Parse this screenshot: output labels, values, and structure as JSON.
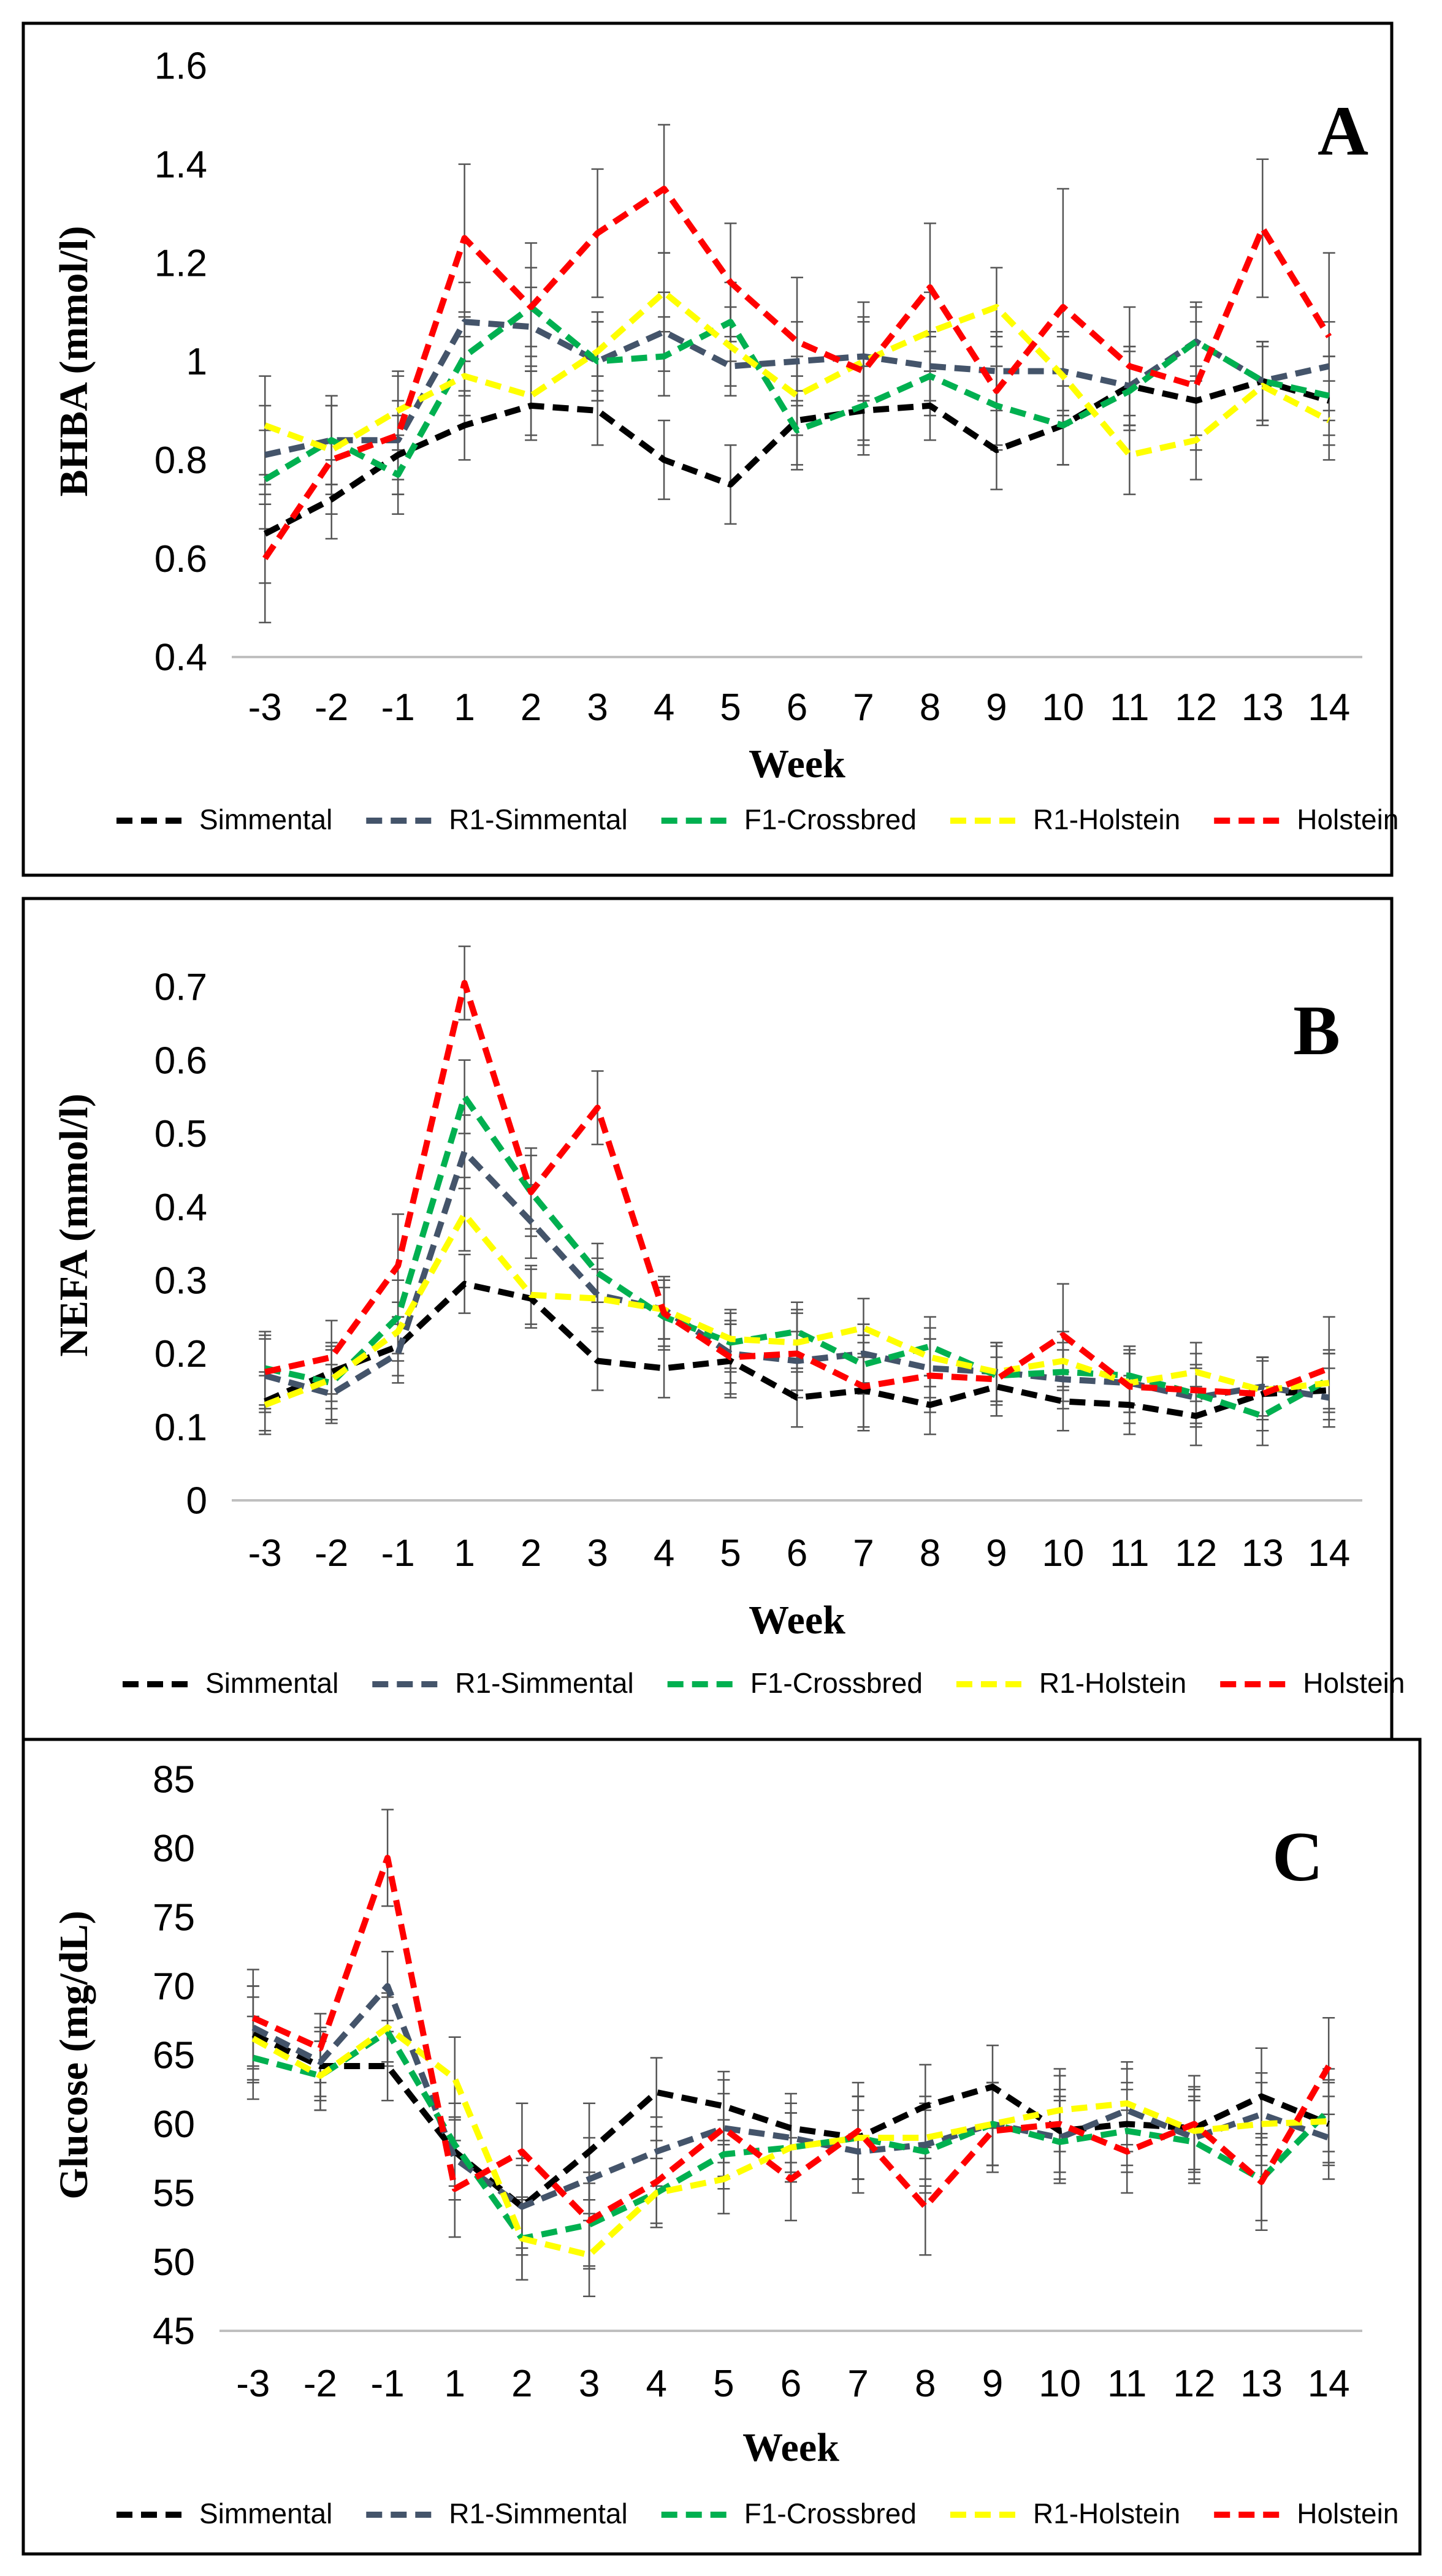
{
  "colors": {
    "Simmental": "#000000",
    "R1-Simmental": "#44546a",
    "F1-Crossbred": "#00b050",
    "R1-Holstein": "#ffff00",
    "Holstein": "#ff0000"
  },
  "chart_data": [
    {
      "type": "line",
      "panel_label": "A",
      "xlabel": "Week",
      "ylabel": "BHBA (mmol/l)",
      "ylim": [
        0.4,
        1.6
      ],
      "yticks": [
        "0.4",
        "0.6",
        "0.8",
        "1",
        "1.2",
        "1.4",
        "1.6"
      ],
      "categories": [
        "-3",
        "-2",
        "-1",
        "1",
        "2",
        "3",
        "4",
        "5",
        "6",
        "7",
        "8",
        "9",
        "10",
        "11",
        "12",
        "13",
        "14"
      ],
      "legend": [
        "Simmental",
        "R1-Simmental",
        "F1-Crossbred",
        "R1-Holstein",
        "Holstein"
      ],
      "series": [
        {
          "name": "Simmental",
          "values": [
            0.65,
            0.72,
            0.81,
            0.87,
            0.91,
            0.9,
            0.8,
            0.75,
            0.88,
            0.9,
            0.91,
            0.82,
            0.87,
            0.95,
            0.92,
            0.96,
            0.92
          ],
          "error": [
            0.1,
            0.08,
            0.08,
            0.07,
            0.07,
            0.07,
            0.08,
            0.08,
            0.09,
            0.09,
            0.07,
            0.08,
            0.08,
            0.08,
            0.07,
            0.08,
            0.09
          ]
        },
        {
          "name": "R1-Simmental",
          "values": [
            0.81,
            0.84,
            0.84,
            1.08,
            1.07,
            1.0,
            1.06,
            0.99,
            1.0,
            1.01,
            0.99,
            0.98,
            0.98,
            0.95,
            1.04,
            0.96,
            0.99
          ],
          "error": [
            0.1,
            0.09,
            0.08,
            0.08,
            0.08,
            0.08,
            0.08,
            0.06,
            0.08,
            0.08,
            0.07,
            0.07,
            0.08,
            0.08,
            0.07,
            0.08,
            0.09
          ]
        },
        {
          "name": "F1-Crossbred",
          "values": [
            0.76,
            0.84,
            0.77,
            1.01,
            1.11,
            1.0,
            1.01,
            1.08,
            0.86,
            0.91,
            0.97,
            0.91,
            0.87,
            0.94,
            1.04,
            0.96,
            0.93
          ],
          "error": [
            0.1,
            0.09,
            0.08,
            0.08,
            0.08,
            0.08,
            0.08,
            0.08,
            0.08,
            0.08,
            0.08,
            0.08,
            0.08,
            0.08,
            0.08,
            0.08,
            0.08
          ]
        },
        {
          "name": "R1-Holstein",
          "values": [
            0.87,
            0.82,
            0.9,
            0.97,
            0.93,
            1.02,
            1.14,
            1.03,
            0.93,
            1.0,
            1.06,
            1.11,
            0.97,
            0.81,
            0.84,
            0.95,
            0.88
          ],
          "error": [
            0.1,
            0.09,
            0.08,
            0.08,
            0.08,
            0.08,
            0.08,
            0.08,
            0.08,
            0.08,
            0.08,
            0.08,
            0.08,
            0.08,
            0.08,
            0.08,
            0.08
          ]
        },
        {
          "name": "Holstein",
          "values": [
            0.6,
            0.8,
            0.85,
            1.25,
            1.11,
            1.26,
            1.35,
            1.16,
            1.04,
            0.98,
            1.15,
            0.94,
            1.11,
            0.99,
            0.95,
            1.27,
            1.05
          ],
          "error": [
            0.13,
            0.11,
            0.12,
            0.15,
            0.13,
            0.13,
            0.13,
            0.12,
            0.13,
            0.14,
            0.13,
            0.12,
            0.24,
            0.12,
            0.13,
            0.14,
            0.17
          ]
        }
      ]
    },
    {
      "type": "line",
      "panel_label": "B",
      "xlabel": "Week",
      "ylabel": "NEFA (mmol/l)",
      "ylim": [
        0,
        0.75
      ],
      "yticks": [
        "0",
        "0.1",
        "0.2",
        "0.3",
        "0.4",
        "0.5",
        "0.6",
        "0.7"
      ],
      "categories": [
        "-3",
        "-2",
        "-1",
        "1",
        "2",
        "3",
        "4",
        "5",
        "6",
        "7",
        "8",
        "9",
        "10",
        "11",
        "12",
        "13",
        "14"
      ],
      "legend": [
        "Simmental",
        "R1-Simmental",
        "F1-Crossbred",
        "R1-Holstein",
        "Holstein"
      ],
      "series": [
        {
          "name": "Simmental",
          "values": [
            0.135,
            0.175,
            0.21,
            0.295,
            0.275,
            0.19,
            0.18,
            0.19,
            0.14,
            0.15,
            0.13,
            0.155,
            0.135,
            0.13,
            0.115,
            0.145,
            0.15
          ],
          "error": [
            0.04,
            0.04,
            0.04,
            0.04,
            0.04,
            0.04,
            0.04,
            0.05,
            0.04,
            0.05,
            0.04,
            0.04,
            0.04,
            0.04,
            0.04,
            0.05,
            0.05
          ]
        },
        {
          "name": "R1-Simmental",
          "values": [
            0.17,
            0.145,
            0.2,
            0.475,
            0.38,
            0.28,
            0.26,
            0.2,
            0.19,
            0.2,
            0.18,
            0.175,
            0.165,
            0.16,
            0.14,
            0.155,
            0.14
          ],
          "error": [
            0.05,
            0.04,
            0.04,
            0.05,
            0.05,
            0.05,
            0.04,
            0.04,
            0.04,
            0.04,
            0.04,
            0.04,
            0.04,
            0.04,
            0.04,
            0.04,
            0.04
          ]
        },
        {
          "name": "F1-Crossbred",
          "values": [
            0.18,
            0.16,
            0.25,
            0.55,
            0.42,
            0.31,
            0.25,
            0.215,
            0.23,
            0.185,
            0.21,
            0.17,
            0.175,
            0.17,
            0.145,
            0.115,
            0.165
          ],
          "error": [
            0.05,
            0.05,
            0.05,
            0.05,
            0.05,
            0.04,
            0.04,
            0.04,
            0.04,
            0.04,
            0.04,
            0.04,
            0.04,
            0.04,
            0.04,
            0.04,
            0.04
          ]
        },
        {
          "name": "R1-Holstein",
          "values": [
            0.13,
            0.165,
            0.23,
            0.39,
            0.28,
            0.275,
            0.26,
            0.22,
            0.215,
            0.235,
            0.195,
            0.175,
            0.19,
            0.16,
            0.175,
            0.15,
            0.16
          ],
          "error": [
            0.04,
            0.04,
            0.04,
            0.05,
            0.04,
            0.04,
            0.04,
            0.04,
            0.04,
            0.04,
            0.04,
            0.04,
            0.04,
            0.04,
            0.04,
            0.04,
            0.04
          ]
        },
        {
          "name": "Holstein",
          "values": [
            0.175,
            0.195,
            0.32,
            0.705,
            0.42,
            0.535,
            0.255,
            0.195,
            0.2,
            0.155,
            0.17,
            0.165,
            0.225,
            0.155,
            0.15,
            0.145,
            0.18
          ],
          "error": [
            0.05,
            0.05,
            0.07,
            0.05,
            0.06,
            0.05,
            0.05,
            0.05,
            0.06,
            0.06,
            0.05,
            0.05,
            0.07,
            0.05,
            0.05,
            0.05,
            0.07
          ]
        }
      ]
    },
    {
      "type": "line",
      "panel_label": "C",
      "xlabel": "Week",
      "ylabel": "Glucose (mg/dL)",
      "ylim": [
        45,
        85
      ],
      "yticks": [
        "45",
        "50",
        "55",
        "60",
        "65",
        "70",
        "75",
        "80",
        "85"
      ],
      "categories": [
        "-3",
        "-2",
        "-1",
        "1",
        "2",
        "3",
        "4",
        "5",
        "6",
        "7",
        "8",
        "9",
        "10",
        "11",
        "12",
        "13",
        "14"
      ],
      "legend": [
        "Simmental",
        "R1-Simmental",
        "F1-Crossbred",
        "R1-Holstein",
        "Holstein"
      ],
      "series": [
        {
          "name": "Simmental",
          "values": [
            66.5,
            64.2,
            64.2,
            58.0,
            54.0,
            58.0,
            62.3,
            61.3,
            59.7,
            59.0,
            61.3,
            62.7,
            59.5,
            60.0,
            59.7,
            62.0,
            60.0
          ],
          "error": [
            3.5,
            2.5,
            2.5,
            3.5,
            3.5,
            3.5,
            2.5,
            2.5,
            2.5,
            3.0,
            3.0,
            3.0,
            3.0,
            3.0,
            3.0,
            3.5,
            3.0
          ]
        },
        {
          "name": "R1-Simmental",
          "values": [
            67.0,
            64.5,
            70.0,
            57.5,
            54.0,
            56.0,
            58.0,
            59.7,
            59.0,
            58.0,
            58.5,
            60.0,
            59.0,
            61.0,
            59.0,
            60.7,
            59.0
          ],
          "error": [
            3.0,
            2.5,
            2.5,
            3.0,
            3.0,
            3.0,
            2.5,
            2.5,
            2.5,
            3.0,
            3.0,
            3.0,
            3.0,
            3.0,
            3.0,
            3.0,
            3.0
          ]
        },
        {
          "name": "F1-Crossbred",
          "values": [
            64.8,
            63.5,
            66.7,
            58.5,
            51.7,
            52.7,
            55.0,
            57.8,
            58.3,
            59.0,
            58.0,
            60.0,
            58.7,
            59.5,
            58.7,
            56.0,
            61.0
          ],
          "error": [
            3.0,
            2.5,
            2.5,
            3.0,
            3.0,
            3.0,
            2.5,
            2.5,
            2.5,
            3.0,
            3.0,
            3.0,
            3.0,
            3.0,
            3.0,
            3.0,
            3.0
          ]
        },
        {
          "name": "R1-Holstein",
          "values": [
            66.2,
            63.5,
            67.0,
            63.3,
            51.7,
            50.5,
            55.0,
            56.0,
            58.3,
            59.0,
            59.0,
            60.0,
            61.0,
            61.5,
            59.5,
            60.0,
            60.2
          ],
          "error": [
            3.0,
            2.5,
            2.5,
            3.0,
            3.0,
            3.0,
            2.5,
            2.5,
            2.5,
            3.0,
            3.0,
            3.0,
            3.0,
            3.0,
            3.0,
            3.0,
            3.0
          ]
        },
        {
          "name": "Holstein",
          "values": [
            67.7,
            65.5,
            79.3,
            55.3,
            58.0,
            53.0,
            55.8,
            59.7,
            56.0,
            59.5,
            54.0,
            59.5,
            60.0,
            58.0,
            60.0,
            55.8,
            64.2
          ],
          "error": [
            3.5,
            2.5,
            3.5,
            3.5,
            3.5,
            3.5,
            3.0,
            3.5,
            3.0,
            3.5,
            3.5,
            3.0,
            3.5,
            3.0,
            3.5,
            3.5,
            3.5
          ]
        }
      ]
    }
  ]
}
